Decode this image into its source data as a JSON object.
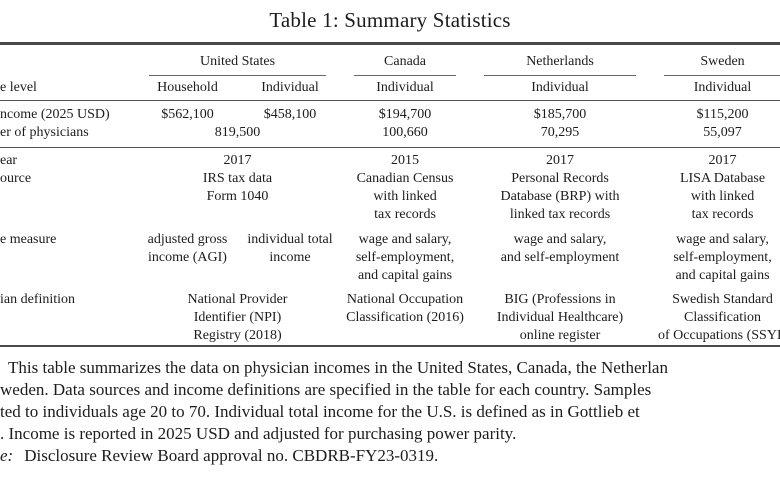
{
  "title": "Table 1: Summary Statistics",
  "table": {
    "row_label_header": "e level",
    "countries": [
      {
        "name": "United States"
      },
      {
        "name": "Canada"
      },
      {
        "name": "Netherlands"
      },
      {
        "name": "Sweden"
      }
    ],
    "subcols": [
      "Household",
      "Individual",
      "Individual",
      "Individual",
      "Individual"
    ],
    "rows": [
      {
        "label": "ncome (2025 USD)",
        "us_h": "$562,100",
        "us_i": "$458,100",
        "ca": "$194,700",
        "nl": "$185,700",
        "se": "$115,200"
      },
      {
        "label": "er of physicians",
        "us": "819,500",
        "ca": "100,660",
        "nl": "70,295",
        "se": "55,097"
      },
      {
        "label": "ear",
        "us": "2017",
        "ca": "2015",
        "nl": "2017",
        "se": "2017"
      },
      {
        "label": "ource",
        "us": "IRS tax data\nForm 1040",
        "ca": "Canadian Census\nwith linked\ntax records",
        "nl": "Personal Records\nDatabase (BRP) with\nlinked tax records",
        "se": "LISA Database\nwith linked\ntax records"
      },
      {
        "label": "e measure",
        "us_h": "adjusted gross\nincome (AGI)",
        "us_i": "individual total\nincome",
        "ca": "wage and salary,\nself-employment,\nand capital gains",
        "nl": "wage and salary,\nand self-employment",
        "se": "wage and salary,\nself-employment,\nand capital gains"
      },
      {
        "label": "ian definition",
        "us": "National Provider\nIdentifier (NPI)\nRegistry (2018)",
        "ca": "National Occupation\nClassification (2016)",
        "nl": "BIG (Professions in\nIndividual Healthcare)\nonline register",
        "se": "Swedish Standard\nClassification\nof Occupations (SSYK"
      }
    ]
  },
  "notes": {
    "lines": [
      "This table summarizes the data on physician incomes in the United States, Canada, the Netherlan",
      "weden. Data sources and income definitions are specified in the table for each country. Samples",
      "ted to individuals age 20 to 70. Individual total income for the U.S. is defined as in Gottlieb et",
      ". Income is reported in 2025 USD and adjusted for purchasing power parity."
    ],
    "source_prefix": "e:",
    "source_text": "Disclosure Review Board approval no. CBDRB-FY23-0319."
  }
}
